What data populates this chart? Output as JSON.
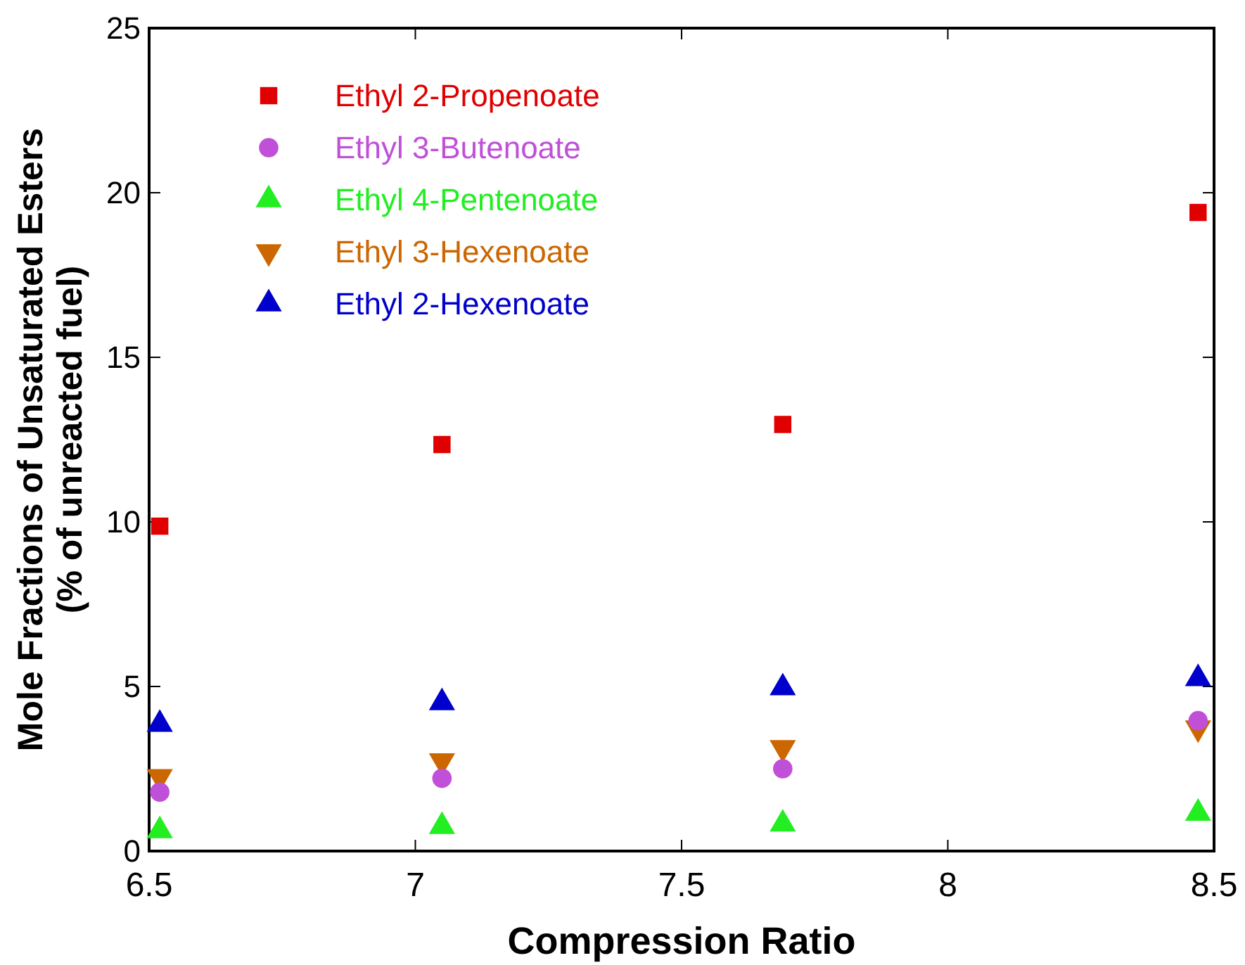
{
  "chart_data": {
    "type": "scatter",
    "xlabel": "Compression Ratio",
    "ylabel": "Mole Fractions of Unsaturated Esters\n(% of unreacted fuel)",
    "x": [
      6.52,
      7.05,
      7.69,
      8.47
    ],
    "xlim": [
      6.5,
      8.5
    ],
    "xticks": [
      6.5,
      7,
      7.5,
      8,
      8.5
    ],
    "ylim": [
      0,
      25
    ],
    "yticks": [
      0,
      5,
      10,
      15,
      20,
      25
    ],
    "grid": false,
    "legend": "top left",
    "series": [
      {
        "name": "Ethyl 2-Propenoate",
        "color": "#e00000",
        "marker": "square",
        "values": [
          9.87,
          12.35,
          12.96,
          19.4
        ]
      },
      {
        "name": "Ethyl 3-Butenoate",
        "color": "#c050d8",
        "marker": "circle",
        "values": [
          1.79,
          2.21,
          2.5,
          3.96
        ]
      },
      {
        "name": "Ethyl 4-Pentenoate",
        "color": "#22ee22",
        "marker": "triangle",
        "values": [
          0.62,
          0.75,
          0.82,
          1.15
        ]
      },
      {
        "name": "Ethyl 3-Hexenoate",
        "color": "#cc6600",
        "marker": "triangle-down",
        "values": [
          2.26,
          2.74,
          3.14,
          3.74
        ]
      },
      {
        "name": "Ethyl 2-Hexenoate",
        "color": "#0000cc",
        "marker": "triangle",
        "values": [
          3.85,
          4.51,
          4.96,
          5.24
        ]
      }
    ]
  }
}
